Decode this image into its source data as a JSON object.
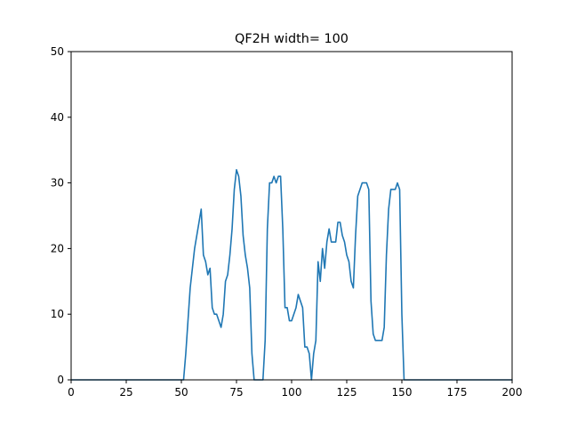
{
  "chart_data": {
    "type": "line",
    "title": "QF2H width= 100",
    "xlabel": "",
    "ylabel": "",
    "xlim": [
      0,
      200
    ],
    "ylim": [
      0,
      50
    ],
    "grid": false,
    "x_ticks": [
      0,
      25,
      50,
      75,
      100,
      125,
      150,
      175,
      200
    ],
    "y_ticks": [
      0,
      10,
      20,
      30,
      40,
      50
    ],
    "x_tick_labels": [
      "0",
      "25",
      "50",
      "75",
      "100",
      "125",
      "150",
      "175",
      "200"
    ],
    "y_tick_labels": [
      "0",
      "10",
      "20",
      "30",
      "40",
      "50"
    ],
    "line_color": "#1f77b4",
    "series": [
      {
        "x": [
          0,
          10,
          20,
          30,
          40,
          50,
          51,
          52,
          53,
          54,
          55,
          56,
          57,
          58,
          59,
          60,
          61,
          62,
          63,
          64,
          65,
          66,
          67,
          68,
          69,
          70,
          71,
          72,
          73,
          74,
          75,
          76,
          77,
          78,
          79,
          80,
          81,
          82,
          83,
          84,
          85,
          86,
          87,
          88,
          89,
          90,
          91,
          92,
          93,
          94,
          95,
          96,
          97,
          98,
          99,
          100,
          101,
          102,
          103,
          104,
          105,
          106,
          107,
          108,
          109,
          110,
          111,
          112,
          113,
          114,
          115,
          116,
          117,
          118,
          119,
          120,
          121,
          122,
          123,
          124,
          125,
          126,
          127,
          128,
          129,
          130,
          131,
          132,
          133,
          134,
          135,
          136,
          137,
          138,
          139,
          140,
          141,
          142,
          143,
          144,
          145,
          146,
          147,
          148,
          149,
          150,
          151,
          152,
          160,
          170,
          180,
          190,
          200
        ],
        "y": [
          0,
          0,
          0,
          0,
          0,
          0,
          0,
          4,
          9,
          14,
          17,
          20,
          22,
          24,
          26,
          19,
          18,
          16,
          17,
          11,
          10,
          10,
          9,
          8,
          10,
          15,
          16,
          19,
          23,
          29,
          32,
          31,
          28,
          22,
          19,
          17,
          14,
          4,
          0,
          0,
          0,
          0,
          0,
          6,
          23,
          30,
          30,
          31,
          30,
          31,
          31,
          23,
          11,
          11,
          9,
          9,
          10,
          11,
          13,
          12,
          11,
          5,
          5,
          4,
          0,
          4,
          6,
          18,
          15,
          20,
          17,
          21,
          23,
          21,
          21,
          21,
          24,
          24,
          22,
          21,
          19,
          18,
          15,
          14,
          22,
          28,
          29,
          30,
          30,
          30,
          29,
          12,
          7,
          6,
          6,
          6,
          6,
          8,
          19,
          26,
          29,
          29,
          29,
          30,
          29,
          10,
          0,
          0,
          0,
          0,
          0,
          0,
          0
        ]
      }
    ]
  }
}
